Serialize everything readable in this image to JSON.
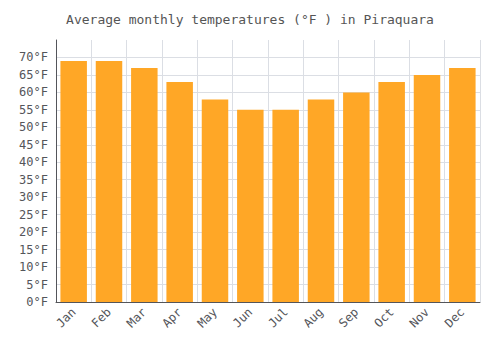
{
  "chart_data": {
    "type": "bar",
    "title": "Average monthly temperatures (°F ) in Piraquara",
    "categories": [
      "Jan",
      "Feb",
      "Mar",
      "Apr",
      "May",
      "Jun",
      "Jul",
      "Aug",
      "Sep",
      "Oct",
      "Nov",
      "Dec"
    ],
    "values": [
      69,
      69,
      67,
      63,
      58,
      55,
      55,
      58,
      60,
      63,
      65,
      67
    ],
    "color": "#FFA726",
    "ylim": [
      0,
      75
    ],
    "yticks": [
      {
        "value": 0,
        "label": "0°F"
      },
      {
        "value": 5,
        "label": "5°F"
      },
      {
        "value": 10,
        "label": "10°F"
      },
      {
        "value": 15,
        "label": "15°F"
      },
      {
        "value": 20,
        "label": "20°F"
      },
      {
        "value": 25,
        "label": "25°F"
      },
      {
        "value": 30,
        "label": "30°F"
      },
      {
        "value": 35,
        "label": "35°F"
      },
      {
        "value": 40,
        "label": "40°F"
      },
      {
        "value": 45,
        "label": "45°F"
      },
      {
        "value": 50,
        "label": "50°F"
      },
      {
        "value": 55,
        "label": "55°F"
      },
      {
        "value": 60,
        "label": "60°F"
      },
      {
        "value": 65,
        "label": "65°F"
      },
      {
        "value": 70,
        "label": "70°F"
      }
    ],
    "grid": true
  }
}
